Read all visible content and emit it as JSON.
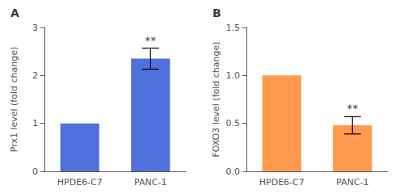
{
  "chart_data": [
    {
      "type": "bar",
      "title": "A",
      "categories": [
        "HPDE6-C7",
        "PANC-1"
      ],
      "values": [
        1.0,
        2.35
      ],
      "errors": [
        0.0,
        0.22
      ],
      "ylabel": "Prx1 level (fold change)",
      "ylim": [
        0,
        3
      ],
      "yticks": [
        0,
        1,
        2,
        3
      ],
      "annotations": [
        {
          "x": "PANC-1",
          "text": "**"
        }
      ],
      "grid": false
    },
    {
      "type": "bar",
      "title": "B",
      "categories": [
        "HPDE6-C7",
        "PANC-1"
      ],
      "values": [
        1.0,
        0.48
      ],
      "errors": [
        0.0,
        0.09
      ],
      "ylabel": "FOXO3 level (fold change)",
      "ylim": [
        0,
        1.5
      ],
      "yticks": [
        {
          "value": 0.0,
          "label": "0.0"
        },
        0.5,
        {
          "value": 1.0,
          "label": "1.0"
        },
        1.5
      ],
      "annotations": [
        {
          "x": "PANC-1",
          "text": "**"
        }
      ],
      "grid": false
    }
  ]
}
